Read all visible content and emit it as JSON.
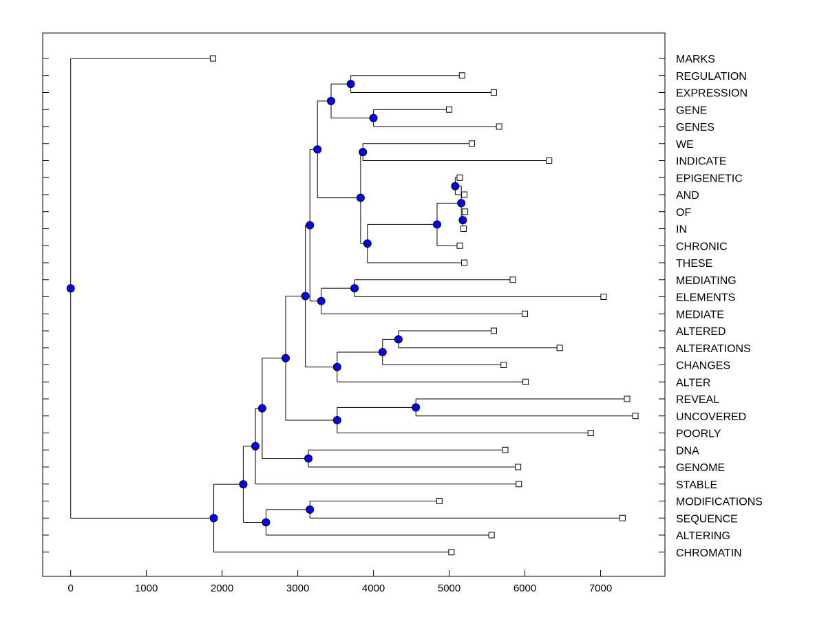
{
  "chart_data": {
    "type": "dendrogram",
    "title": "",
    "xlabel": "",
    "ylabel": "",
    "xlim": [
      -370,
      7850
    ],
    "x_ticks": [
      0,
      1000,
      2000,
      3000,
      4000,
      5000,
      6000,
      7000
    ],
    "leaf_colors": {
      "node": "#0000ff",
      "leaf_marker": "#ffffff",
      "line": "#000000"
    },
    "leaves": [
      {
        "label": "MARKS",
        "value": 1880
      },
      {
        "label": "REGULATION",
        "value": 5170
      },
      {
        "label": "EXPRESSION",
        "value": 5590
      },
      {
        "label": "GENE",
        "value": 5000
      },
      {
        "label": "GENES",
        "value": 5660
      },
      {
        "label": "WE",
        "value": 5300
      },
      {
        "label": "INDICATE",
        "value": 6320
      },
      {
        "label": "EPIGENETIC",
        "value": 5140
      },
      {
        "label": "AND",
        "value": 5200
      },
      {
        "label": "OF",
        "value": 5210
      },
      {
        "label": "IN",
        "value": 5190
      },
      {
        "label": "CHRONIC",
        "value": 5140
      },
      {
        "label": "THESE",
        "value": 5200
      },
      {
        "label": "MEDIATING",
        "value": 5840
      },
      {
        "label": "ELEMENTS",
        "value": 7040
      },
      {
        "label": "MEDIATE",
        "value": 6000
      },
      {
        "label": "ALTERED",
        "value": 5590
      },
      {
        "label": "ALTERATIONS",
        "value": 6460
      },
      {
        "label": "CHANGES",
        "value": 5720
      },
      {
        "label": "ALTER",
        "value": 6010
      },
      {
        "label": "REVEAL",
        "value": 7350
      },
      {
        "label": "UNCOVERED",
        "value": 7460
      },
      {
        "label": "POORLY",
        "value": 6870
      },
      {
        "label": "DNA",
        "value": 5740
      },
      {
        "label": "GENOME",
        "value": 5910
      },
      {
        "label": "STABLE",
        "value": 5920
      },
      {
        "label": "MODIFICATIONS",
        "value": 4870
      },
      {
        "label": "SEQUENCE",
        "value": 7290
      },
      {
        "label": "ALTERING",
        "value": 5560
      },
      {
        "label": "CHROMATIN",
        "value": 5030
      }
    ],
    "merges": [
      {
        "id": "n1",
        "value": 3700,
        "children": [
          1,
          2
        ]
      },
      {
        "id": "n2",
        "value": 4000,
        "children": [
          3,
          4
        ]
      },
      {
        "id": "n3",
        "value": 3440,
        "children": [
          "n1",
          "n2"
        ]
      },
      {
        "id": "n4",
        "value": 3860,
        "children": [
          5,
          6
        ]
      },
      {
        "id": "n5",
        "value": 5080,
        "children": [
          7,
          8
        ]
      },
      {
        "id": "n6",
        "value": 5180,
        "children": [
          9,
          10
        ]
      },
      {
        "id": "n7",
        "value": 5160,
        "children": [
          "n5",
          "n6"
        ]
      },
      {
        "id": "n8",
        "value": 4840,
        "children": [
          "n7",
          11
        ]
      },
      {
        "id": "n9",
        "value": 3920,
        "children": [
          "n8",
          12
        ]
      },
      {
        "id": "n10",
        "value": 3830,
        "children": [
          "n4",
          "n9"
        ]
      },
      {
        "id": "n11",
        "value": 3260,
        "children": [
          "n3",
          "n10"
        ]
      },
      {
        "id": "n12",
        "value": 3750,
        "children": [
          13,
          14
        ]
      },
      {
        "id": "n13",
        "value": 3310,
        "children": [
          "n12",
          15
        ]
      },
      {
        "id": "n14",
        "value": 3160,
        "children": [
          "n11",
          "n13"
        ]
      },
      {
        "id": "n15",
        "value": 4330,
        "children": [
          16,
          17
        ]
      },
      {
        "id": "n16",
        "value": 4120,
        "children": [
          "n15",
          18
        ]
      },
      {
        "id": "n17",
        "value": 3520,
        "children": [
          "n16",
          19
        ]
      },
      {
        "id": "n18",
        "value": 3100,
        "children": [
          "n14",
          "n17"
        ]
      },
      {
        "id": "n19",
        "value": 4560,
        "children": [
          20,
          21
        ]
      },
      {
        "id": "n20",
        "value": 3520,
        "children": [
          "n19",
          22
        ]
      },
      {
        "id": "n21",
        "value": 2840,
        "children": [
          "n18",
          "n20"
        ]
      },
      {
        "id": "n22",
        "value": 3140,
        "children": [
          23,
          24
        ]
      },
      {
        "id": "n23",
        "value": 2530,
        "children": [
          "n21",
          "n22"
        ]
      },
      {
        "id": "n24",
        "value": 2440,
        "children": [
          "n23",
          25
        ]
      },
      {
        "id": "n25",
        "value": 3160,
        "children": [
          26,
          27
        ]
      },
      {
        "id": "n26",
        "value": 2580,
        "children": [
          "n25",
          28
        ]
      },
      {
        "id": "n27",
        "value": 2280,
        "children": [
          "n24",
          "n26"
        ]
      },
      {
        "id": "n28",
        "value": 1890,
        "children": [
          "n27",
          29
        ]
      },
      {
        "id": "root",
        "value": 0,
        "children": [
          0,
          "n28"
        ]
      }
    ]
  }
}
